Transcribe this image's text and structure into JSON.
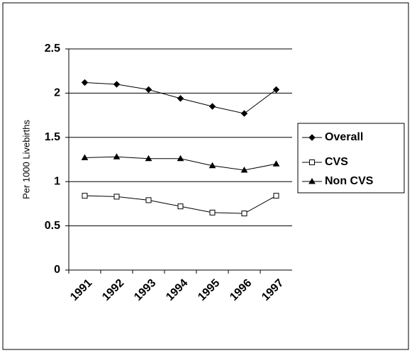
{
  "chart_data": {
    "type": "line",
    "y_label": "Per 1000 Livebirths",
    "categories": [
      "1991",
      "1992",
      "1993",
      "1994",
      "1995",
      "1996",
      "1997"
    ],
    "series": [
      {
        "name": "Overall",
        "color": "#000000",
        "marker": "diamond",
        "values": [
          2.12,
          2.1,
          2.04,
          1.94,
          1.85,
          1.77,
          2.04
        ]
      },
      {
        "name": "CVS",
        "color": "#000000",
        "marker": "square",
        "values": [
          0.84,
          0.83,
          0.79,
          0.72,
          0.65,
          0.64,
          0.84
        ]
      },
      {
        "name": "Non CVS",
        "color": "#000000",
        "marker": "triangle",
        "values": [
          1.27,
          1.28,
          1.26,
          1.26,
          1.18,
          1.13,
          1.2
        ]
      }
    ],
    "ylim": [
      0,
      2.5
    ],
    "yticks": [
      0,
      0.5,
      1,
      1.5,
      2,
      2.5
    ],
    "grid": true,
    "legend": "right"
  }
}
